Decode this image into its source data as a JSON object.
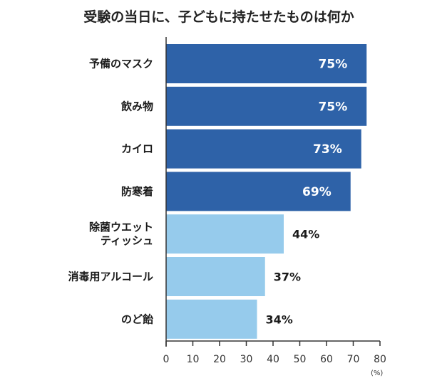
{
  "chart_data": {
    "type": "bar",
    "orientation": "horizontal",
    "title": "受験の当日に、子どもに持たせたものは何か",
    "categories": [
      "予備のマスク",
      "飲み物",
      "カイロ",
      "防寒着",
      "除菌ウエットティッシュ",
      "消毒用アルコール",
      "のど飴"
    ],
    "category_lines": [
      [
        "予備のマスク"
      ],
      [
        "飲み物"
      ],
      [
        "カイロ"
      ],
      [
        "防寒着"
      ],
      [
        "除菌ウエット",
        "ティッシュ"
      ],
      [
        "消毒用アルコール"
      ],
      [
        "のど飴"
      ]
    ],
    "values": [
      75,
      75,
      73,
      69,
      44,
      37,
      34
    ],
    "value_labels": [
      "75%",
      "75%",
      "73%",
      "69%",
      "44%",
      "37%",
      "34%"
    ],
    "xlim": [
      0,
      80
    ],
    "xticks": [
      0,
      10,
      20,
      30,
      40,
      50,
      60,
      70,
      80
    ],
    "unit_label": "(%)",
    "grid": false,
    "colors": {
      "dark_bar": "#2E62A8",
      "light_bar": "#96CBEC",
      "axis": "#333333"
    }
  }
}
